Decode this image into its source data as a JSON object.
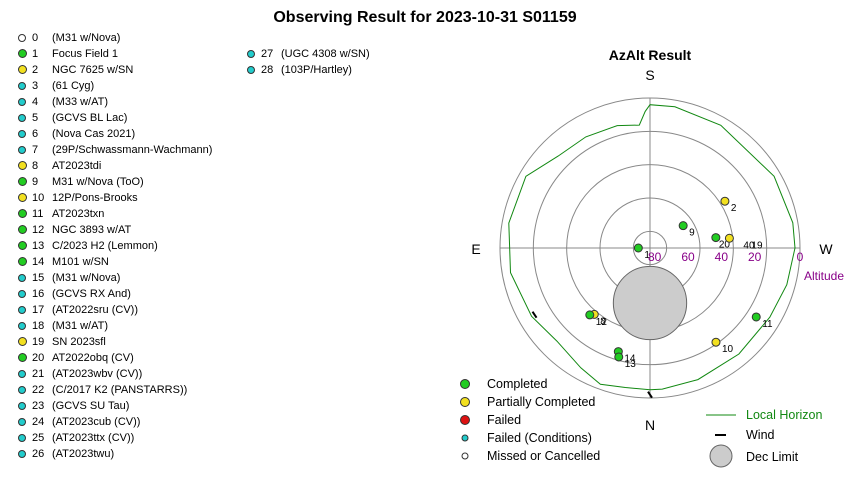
{
  "title": "Observing Result for 2023-10-31 S01159",
  "colors": {
    "completed": "#22cc22",
    "partial": "#f2e020",
    "failed": "#dd1111",
    "failed_conditions": "#22cccc",
    "missed": "#ffffff",
    "horizon": "#118811",
    "altitude_label": "#880088",
    "dec_limit": "#cccccc"
  },
  "targets": [
    {
      "num": "0",
      "name": "(M31 w/Nova)",
      "status": "missed"
    },
    {
      "num": "1",
      "name": "Focus Field 1",
      "status": "completed"
    },
    {
      "num": "2",
      "name": "NGC 7625 w/SN",
      "status": "partial"
    },
    {
      "num": "3",
      "name": "(61 Cyg)",
      "status": "failed_conditions"
    },
    {
      "num": "4",
      "name": "(M33 w/AT)",
      "status": "failed_conditions"
    },
    {
      "num": "5",
      "name": "(GCVS BL Lac)",
      "status": "failed_conditions"
    },
    {
      "num": "6",
      "name": "(Nova Cas 2021)",
      "status": "failed_conditions"
    },
    {
      "num": "7",
      "name": "(29P/Schwassmann-Wachmann)",
      "status": "failed_conditions"
    },
    {
      "num": "8",
      "name": "AT2023tdi",
      "status": "partial"
    },
    {
      "num": "9",
      "name": "M31 w/Nova (ToO)",
      "status": "completed"
    },
    {
      "num": "10",
      "name": "12P/Pons-Brooks",
      "status": "partial"
    },
    {
      "num": "11",
      "name": "AT2023txn",
      "status": "completed"
    },
    {
      "num": "12",
      "name": "NGC 3893 w/AT",
      "status": "completed"
    },
    {
      "num": "13",
      "name": "C/2023 H2 (Lemmon)",
      "status": "completed"
    },
    {
      "num": "14",
      "name": "M101 w/SN",
      "status": "completed"
    },
    {
      "num": "15",
      "name": "(M31 w/Nova)",
      "status": "failed_conditions"
    },
    {
      "num": "16",
      "name": "(GCVS RX And)",
      "status": "failed_conditions"
    },
    {
      "num": "17",
      "name": "(AT2022sru (CV))",
      "status": "failed_conditions"
    },
    {
      "num": "18",
      "name": "(M31 w/AT)",
      "status": "failed_conditions"
    },
    {
      "num": "19",
      "name": "SN 2023sfl",
      "status": "partial"
    },
    {
      "num": "20",
      "name": "AT2022obq (CV)",
      "status": "completed"
    },
    {
      "num": "21",
      "name": "(AT2023wbv (CV))",
      "status": "failed_conditions"
    },
    {
      "num": "22",
      "name": "(C/2017 K2 (PANSTARRS))",
      "status": "failed_conditions"
    },
    {
      "num": "23",
      "name": "(GCVS SU Tau)",
      "status": "failed_conditions"
    },
    {
      "num": "24",
      "name": "(AT2023cub (CV))",
      "status": "failed_conditions"
    },
    {
      "num": "25",
      "name": "(AT2023ttx (CV))",
      "status": "failed_conditions"
    },
    {
      "num": "26",
      "name": "(AT2023twu)",
      "status": "failed_conditions"
    },
    {
      "num": "27",
      "name": "(UGC 4308 w/SN)",
      "status": "failed_conditions"
    },
    {
      "num": "28",
      "name": "(103P/Hartley)",
      "status": "failed_conditions"
    }
  ],
  "azalt": {
    "title": "AzAlt Result",
    "directions": {
      "south": "S",
      "north": "N",
      "east": "E",
      "west": "W"
    },
    "altitude_ticks": [
      80,
      60,
      40,
      20,
      0
    ],
    "altitude_label": "Altitude",
    "plotted": [
      {
        "label": "1",
        "az": 90,
        "alt": 83,
        "status": "completed"
      },
      {
        "label": "2",
        "az": 238,
        "alt": 37,
        "status": "partial"
      },
      {
        "label": "9",
        "az": 236,
        "alt": 66,
        "status": "completed"
      },
      {
        "label": "20",
        "az": 261,
        "alt": 50,
        "status": "completed"
      },
      {
        "label": "40",
        "az": 263,
        "alt": 42,
        "status": "partial"
      },
      {
        "label": "19",
        "az": 263,
        "alt": 42,
        "status": "partial"
      },
      {
        "label": "11",
        "az": 303,
        "alt": 14,
        "status": "completed"
      },
      {
        "label": "10",
        "az": 325,
        "alt": 21,
        "status": "partial"
      },
      {
        "label": "8",
        "az": 40,
        "alt": 38,
        "status": "partial"
      },
      {
        "label": "12",
        "az": 42,
        "alt": 36,
        "status": "completed"
      },
      {
        "label": "14",
        "az": 17,
        "alt": 25,
        "status": "completed"
      },
      {
        "label": "13",
        "az": 16,
        "alt": 22,
        "status": "completed"
      }
    ],
    "horizon": [
      [
        0,
        5
      ],
      [
        10,
        5
      ],
      [
        20,
        3
      ],
      [
        30,
        7
      ],
      [
        45,
        11
      ],
      [
        60,
        8
      ],
      [
        80,
        5
      ],
      [
        100,
        4
      ],
      [
        120,
        4
      ],
      [
        135,
        12
      ],
      [
        150,
        13
      ],
      [
        165,
        14
      ],
      [
        175,
        16
      ],
      [
        178,
        8
      ],
      [
        180,
        4
      ],
      [
        190,
        4
      ],
      [
        210,
        5
      ],
      [
        240,
        4
      ],
      [
        260,
        3
      ],
      [
        270,
        3
      ],
      [
        285,
        5
      ],
      [
        300,
        7
      ],
      [
        320,
        7
      ],
      [
        340,
        6
      ],
      [
        355,
        5
      ]
    ],
    "wind": [
      {
        "az": 60,
        "alt": 10
      },
      {
        "az": 0,
        "alt": 2
      }
    ],
    "dec_limit": {
      "az": 0,
      "alt": 57,
      "radius_alt": 22
    }
  },
  "legend": {
    "completed": "Completed",
    "partial": "Partially Completed",
    "failed": "Failed",
    "failed_conditions": "Failed (Conditions)",
    "missed": "Missed or Cancelled",
    "horizon": "Local Horizon",
    "wind": "Wind",
    "dec_limit": "Dec Limit"
  }
}
